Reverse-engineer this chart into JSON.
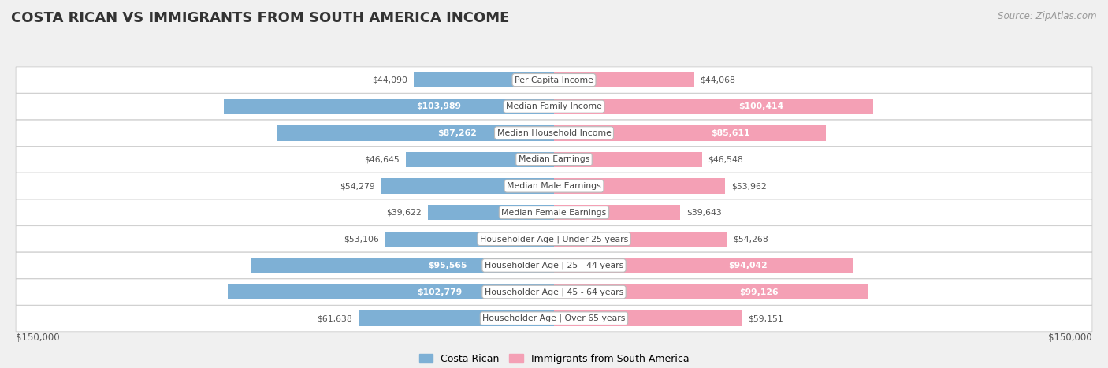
{
  "title": "COSTA RICAN VS IMMIGRANTS FROM SOUTH AMERICA INCOME",
  "source": "Source: ZipAtlas.com",
  "categories": [
    "Per Capita Income",
    "Median Family Income",
    "Median Household Income",
    "Median Earnings",
    "Median Male Earnings",
    "Median Female Earnings",
    "Householder Age | Under 25 years",
    "Householder Age | 25 - 44 years",
    "Householder Age | 45 - 64 years",
    "Householder Age | Over 65 years"
  ],
  "left_values": [
    44090,
    103989,
    87262,
    46645,
    54279,
    39622,
    53106,
    95565,
    102779,
    61638
  ],
  "right_values": [
    44068,
    100414,
    85611,
    46548,
    53962,
    39643,
    54268,
    94042,
    99126,
    59151
  ],
  "left_labels": [
    "$44,090",
    "$103,989",
    "$87,262",
    "$46,645",
    "$54,279",
    "$39,622",
    "$53,106",
    "$95,565",
    "$102,779",
    "$61,638"
  ],
  "right_labels": [
    "$44,068",
    "$100,414",
    "$85,611",
    "$46,548",
    "$53,962",
    "$39,643",
    "$54,268",
    "$94,042",
    "$99,126",
    "$59,151"
  ],
  "left_color": "#7EB0D5",
  "right_color": "#F4A0B5",
  "label_inside_threshold": 80000,
  "max_value": 150000,
  "legend_left": "Costa Rican",
  "legend_right": "Immigrants from South America",
  "x_tick_left": "$150,000",
  "x_tick_right": "$150,000",
  "background_color": "#f0f0f0",
  "row_background": "#ffffff",
  "title_fontsize": 13,
  "source_fontsize": 8.5,
  "bar_height": 0.58
}
